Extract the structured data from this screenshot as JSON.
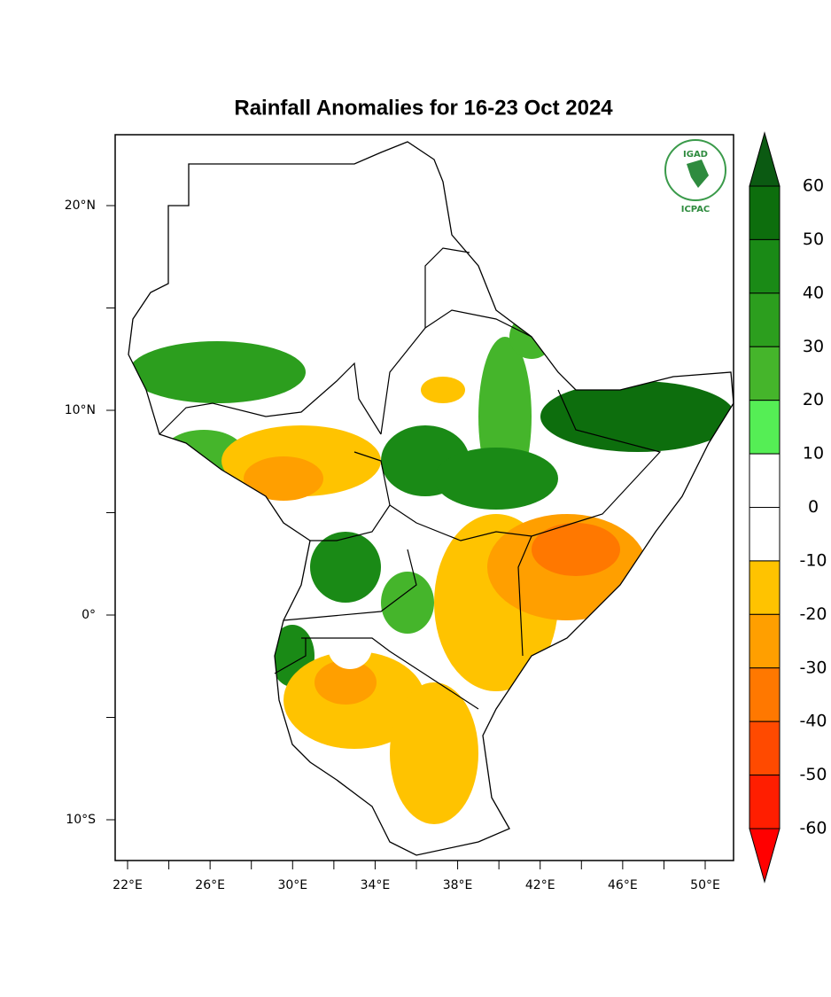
{
  "map": {
    "title": "Rainfall Anomalies for 16-23 Oct 2024",
    "lon_ticks": [
      {
        "value": 22,
        "label": "22°E"
      },
      {
        "value": 26,
        "label": "26°E"
      },
      {
        "value": 30,
        "label": "30°E"
      },
      {
        "value": 34,
        "label": "34°E"
      },
      {
        "value": 38,
        "label": "38°E"
      },
      {
        "value": 42,
        "label": "42°E"
      },
      {
        "value": 46,
        "label": "46°E"
      },
      {
        "value": 50,
        "label": "50°E"
      }
    ],
    "lat_ticks": [
      {
        "value": 20,
        "label": "20°N"
      },
      {
        "value": 10,
        "label": "10°N"
      },
      {
        "value": 0,
        "label": "0°"
      },
      {
        "value": -10,
        "label": "10°S"
      }
    ],
    "colorbar": {
      "levels": [
        60,
        50,
        40,
        30,
        20,
        10,
        0,
        -10,
        -20,
        -30,
        -40,
        -50,
        -60
      ],
      "colors": [
        "#0b5a12",
        "#0d6e0d",
        "#1a8a16",
        "#2c9e1e",
        "#45b52b",
        "#55ee55",
        "#ffffff",
        "#ffffff",
        "#ffc300",
        "#ff9f00",
        "#ff7800",
        "#ff4a00",
        "#ff1e00",
        "#ff0000"
      ]
    },
    "logo": {
      "top": "IGAD",
      "bottom": "ICPAC"
    }
  }
}
